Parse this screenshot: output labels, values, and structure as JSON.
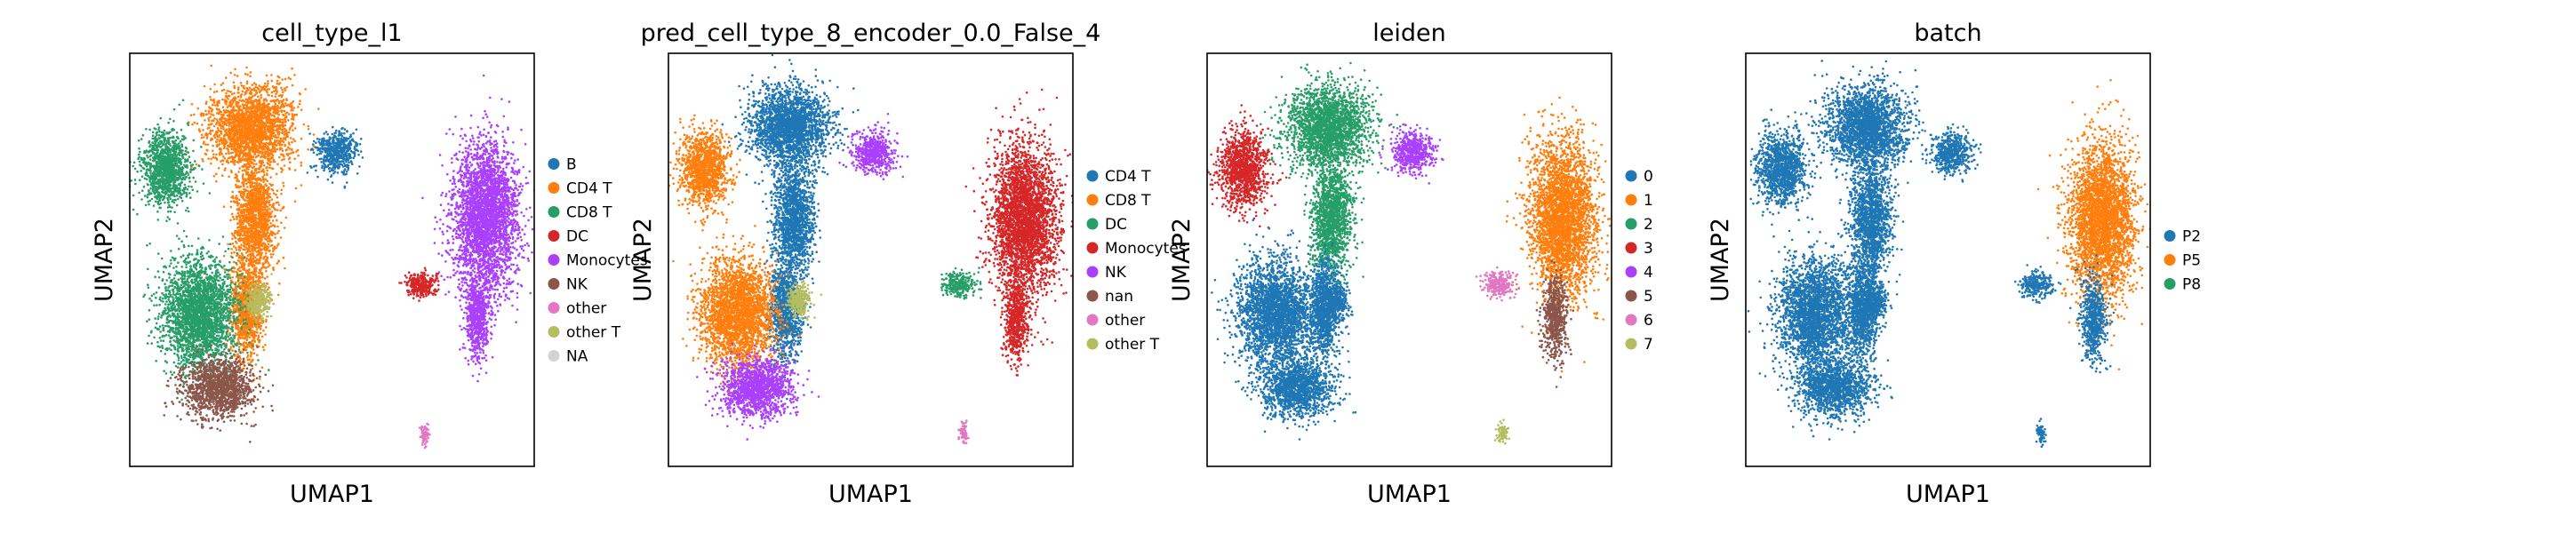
{
  "figure": {
    "panels_count": 4
  },
  "chart_data": [
    {
      "type": "scatter",
      "title": "cell_type_l1",
      "xlabel": "UMAP1",
      "ylabel": "UMAP2",
      "legend_position": "right",
      "grid": false,
      "series": [
        {
          "name": "B",
          "color": "#1f77b4"
        },
        {
          "name": "CD4 T",
          "color": "#ff7f0e"
        },
        {
          "name": "CD8 T",
          "color": "#279e68"
        },
        {
          "name": "DC",
          "color": "#d62728"
        },
        {
          "name": "Monocytes",
          "color": "#aa40fc"
        },
        {
          "name": "NK",
          "color": "#8c564b"
        },
        {
          "name": "other",
          "color": "#e377c2"
        },
        {
          "name": "other T",
          "color": "#b5bd61"
        },
        {
          "name": "NA",
          "color": "#d3d3d3"
        }
      ],
      "clusters": [
        {
          "series": "CD4 T",
          "cx": 0.3,
          "cy": 0.18,
          "rx": 0.1,
          "ry": 0.1
        },
        {
          "series": "CD4 T",
          "cx": 0.31,
          "cy": 0.4,
          "rx": 0.05,
          "ry": 0.13
        },
        {
          "series": "CD4 T",
          "cx": 0.29,
          "cy": 0.62,
          "rx": 0.04,
          "ry": 0.12
        },
        {
          "series": "CD8 T",
          "cx": 0.09,
          "cy": 0.28,
          "rx": 0.06,
          "ry": 0.09
        },
        {
          "series": "CD8 T",
          "cx": 0.17,
          "cy": 0.63,
          "rx": 0.09,
          "ry": 0.13
        },
        {
          "series": "B",
          "cx": 0.51,
          "cy": 0.24,
          "rx": 0.05,
          "ry": 0.05
        },
        {
          "series": "Monocytes",
          "cx": 0.88,
          "cy": 0.4,
          "rx": 0.08,
          "ry": 0.18
        },
        {
          "series": "Monocytes",
          "cx": 0.86,
          "cy": 0.64,
          "rx": 0.03,
          "ry": 0.1
        },
        {
          "series": "DC",
          "cx": 0.72,
          "cy": 0.56,
          "rx": 0.04,
          "ry": 0.03
        },
        {
          "series": "NK",
          "cx": 0.22,
          "cy": 0.81,
          "rx": 0.09,
          "ry": 0.07
        },
        {
          "series": "other T",
          "cx": 0.32,
          "cy": 0.6,
          "rx": 0.03,
          "ry": 0.04
        },
        {
          "series": "other",
          "cx": 0.73,
          "cy": 0.92,
          "rx": 0.012,
          "ry": 0.025
        }
      ]
    },
    {
      "type": "scatter",
      "title": "pred_cell_type_8_encoder_0.0_False_4",
      "xlabel": "UMAP1",
      "ylabel": "UMAP2",
      "legend_position": "right",
      "grid": false,
      "series": [
        {
          "name": "CD4 T",
          "color": "#1f77b4"
        },
        {
          "name": "CD8 T",
          "color": "#ff7f0e"
        },
        {
          "name": "DC",
          "color": "#279e68"
        },
        {
          "name": "Monocytes",
          "color": "#d62728"
        },
        {
          "name": "NK",
          "color": "#aa40fc"
        },
        {
          "name": "nan",
          "color": "#8c564b"
        },
        {
          "name": "other",
          "color": "#e377c2"
        },
        {
          "name": "other T",
          "color": "#b5bd61"
        }
      ],
      "clusters": [
        {
          "series": "CD4 T",
          "cx": 0.3,
          "cy": 0.18,
          "rx": 0.1,
          "ry": 0.1
        },
        {
          "series": "CD4 T",
          "cx": 0.31,
          "cy": 0.4,
          "rx": 0.05,
          "ry": 0.13
        },
        {
          "series": "CD4 T",
          "cx": 0.29,
          "cy": 0.62,
          "rx": 0.04,
          "ry": 0.12
        },
        {
          "series": "CD8 T",
          "cx": 0.09,
          "cy": 0.28,
          "rx": 0.06,
          "ry": 0.09
        },
        {
          "series": "CD8 T",
          "cx": 0.17,
          "cy": 0.63,
          "rx": 0.09,
          "ry": 0.13
        },
        {
          "series": "NK",
          "cx": 0.51,
          "cy": 0.24,
          "rx": 0.05,
          "ry": 0.05
        },
        {
          "series": "Monocytes",
          "cx": 0.88,
          "cy": 0.4,
          "rx": 0.08,
          "ry": 0.18
        },
        {
          "series": "Monocytes",
          "cx": 0.86,
          "cy": 0.64,
          "rx": 0.03,
          "ry": 0.1
        },
        {
          "series": "DC",
          "cx": 0.72,
          "cy": 0.56,
          "rx": 0.04,
          "ry": 0.03
        },
        {
          "series": "NK",
          "cx": 0.22,
          "cy": 0.81,
          "rx": 0.09,
          "ry": 0.07
        },
        {
          "series": "other T",
          "cx": 0.32,
          "cy": 0.6,
          "rx": 0.03,
          "ry": 0.04
        },
        {
          "series": "other",
          "cx": 0.73,
          "cy": 0.92,
          "rx": 0.012,
          "ry": 0.025
        }
      ]
    },
    {
      "type": "scatter",
      "title": "leiden",
      "xlabel": "UMAP1",
      "ylabel": "UMAP2",
      "legend_position": "right",
      "grid": false,
      "series": [
        {
          "name": "0",
          "color": "#1f77b4"
        },
        {
          "name": "1",
          "color": "#ff7f0e"
        },
        {
          "name": "2",
          "color": "#279e68"
        },
        {
          "name": "3",
          "color": "#d62728"
        },
        {
          "name": "4",
          "color": "#aa40fc"
        },
        {
          "name": "5",
          "color": "#8c564b"
        },
        {
          "name": "6",
          "color": "#e377c2"
        },
        {
          "name": "7",
          "color": "#b5bd61"
        }
      ],
      "clusters": [
        {
          "series": "2",
          "cx": 0.3,
          "cy": 0.18,
          "rx": 0.1,
          "ry": 0.1
        },
        {
          "series": "2",
          "cx": 0.31,
          "cy": 0.4,
          "rx": 0.05,
          "ry": 0.13
        },
        {
          "series": "0",
          "cx": 0.29,
          "cy": 0.62,
          "rx": 0.04,
          "ry": 0.12
        },
        {
          "series": "3",
          "cx": 0.09,
          "cy": 0.28,
          "rx": 0.06,
          "ry": 0.09
        },
        {
          "series": "0",
          "cx": 0.17,
          "cy": 0.63,
          "rx": 0.09,
          "ry": 0.13
        },
        {
          "series": "4",
          "cx": 0.51,
          "cy": 0.24,
          "rx": 0.05,
          "ry": 0.05
        },
        {
          "series": "1",
          "cx": 0.88,
          "cy": 0.4,
          "rx": 0.08,
          "ry": 0.18
        },
        {
          "series": "5",
          "cx": 0.86,
          "cy": 0.64,
          "rx": 0.03,
          "ry": 0.1
        },
        {
          "series": "6",
          "cx": 0.72,
          "cy": 0.56,
          "rx": 0.04,
          "ry": 0.03
        },
        {
          "series": "0",
          "cx": 0.22,
          "cy": 0.81,
          "rx": 0.09,
          "ry": 0.07
        },
        {
          "series": "0",
          "cx": 0.32,
          "cy": 0.6,
          "rx": 0.03,
          "ry": 0.04
        },
        {
          "series": "7",
          "cx": 0.73,
          "cy": 0.92,
          "rx": 0.012,
          "ry": 0.025
        }
      ]
    },
    {
      "type": "scatter",
      "title": "batch",
      "xlabel": "UMAP1",
      "ylabel": "UMAP2",
      "legend_position": "right",
      "grid": false,
      "series": [
        {
          "name": "P2",
          "color": "#1f77b4"
        },
        {
          "name": "P5",
          "color": "#ff7f0e"
        },
        {
          "name": "P8",
          "color": "#279e68"
        }
      ],
      "clusters": [
        {
          "series": "P2",
          "cx": 0.3,
          "cy": 0.18,
          "rx": 0.1,
          "ry": 0.1
        },
        {
          "series": "P2",
          "cx": 0.31,
          "cy": 0.4,
          "rx": 0.05,
          "ry": 0.13
        },
        {
          "series": "P2",
          "cx": 0.29,
          "cy": 0.62,
          "rx": 0.04,
          "ry": 0.12
        },
        {
          "series": "P2",
          "cx": 0.09,
          "cy": 0.28,
          "rx": 0.06,
          "ry": 0.09
        },
        {
          "series": "P2",
          "cx": 0.17,
          "cy": 0.63,
          "rx": 0.09,
          "ry": 0.13
        },
        {
          "series": "P2",
          "cx": 0.51,
          "cy": 0.24,
          "rx": 0.05,
          "ry": 0.05
        },
        {
          "series": "P5",
          "cx": 0.88,
          "cy": 0.4,
          "rx": 0.08,
          "ry": 0.18
        },
        {
          "series": "P2",
          "cx": 0.86,
          "cy": 0.64,
          "rx": 0.03,
          "ry": 0.1
        },
        {
          "series": "P2",
          "cx": 0.72,
          "cy": 0.56,
          "rx": 0.04,
          "ry": 0.03
        },
        {
          "series": "P2",
          "cx": 0.22,
          "cy": 0.81,
          "rx": 0.09,
          "ry": 0.07
        },
        {
          "series": "P2",
          "cx": 0.32,
          "cy": 0.6,
          "rx": 0.03,
          "ry": 0.04
        },
        {
          "series": "P2",
          "cx": 0.73,
          "cy": 0.92,
          "rx": 0.012,
          "ry": 0.025
        }
      ]
    }
  ]
}
